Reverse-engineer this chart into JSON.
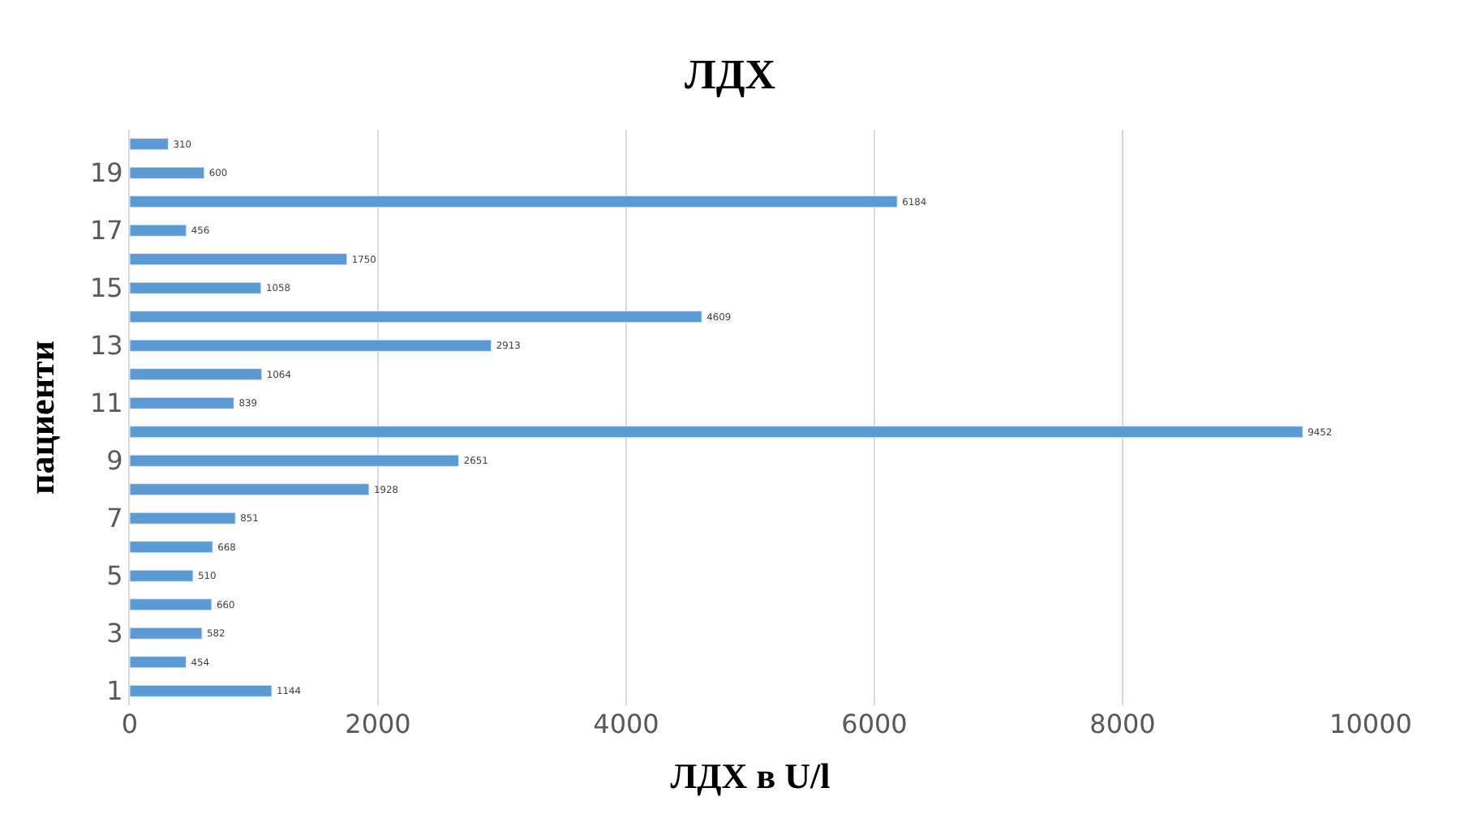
{
  "chart_data": {
    "type": "bar",
    "orientation": "horizontal",
    "title": "ЛДХ",
    "xlabel": "ЛДХ в U/l",
    "ylabel": "пациенти",
    "categories": [
      null,
      "19",
      null,
      "17",
      null,
      "15",
      null,
      "13",
      null,
      "11",
      null,
      "9",
      null,
      "7",
      null,
      "5",
      null,
      "3",
      null,
      "1"
    ],
    "values": [
      310,
      600,
      6184,
      456,
      1750,
      1058,
      4609,
      2913,
      1064,
      839,
      9452,
      2651,
      1928,
      851,
      668,
      510,
      660,
      582,
      454,
      1144
    ],
    "color": "#5b9bd5",
    "xlim": [
      0,
      10000
    ],
    "xticks": [
      0,
      2000,
      4000,
      6000,
      8000,
      10000
    ],
    "grid": "x",
    "data_labels": true
  }
}
